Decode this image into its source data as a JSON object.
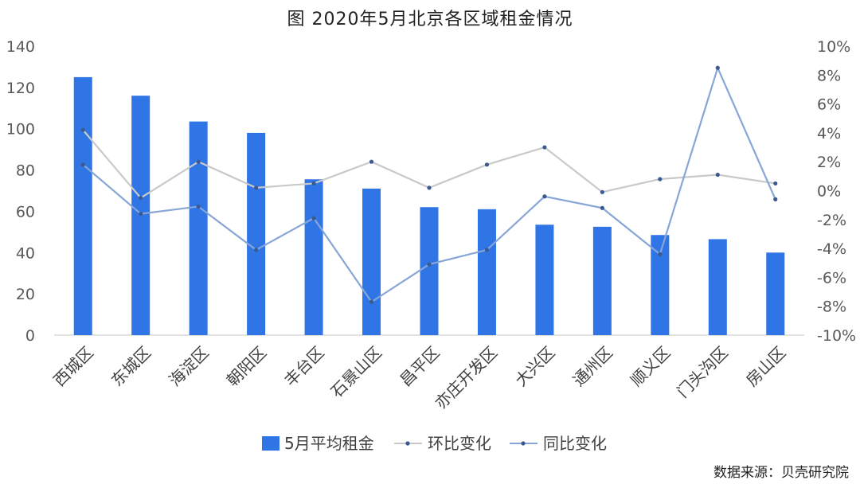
{
  "title": "图 2020年5月北京各区域租金情况",
  "source": "数据来源：贝壳研究院",
  "colors": {
    "bar": "#2F75E5",
    "mom": "#C9C9C9",
    "yoy": "#87A5D6",
    "axis": "#D9D9D9"
  },
  "chart_data": {
    "type": "bar",
    "categories": [
      "西城区",
      "东城区",
      "海淀区",
      "朝阳区",
      "丰台区",
      "石景山区",
      "昌平区",
      "亦庄开发区",
      "大兴区",
      "通州区",
      "顺义区",
      "门头沟区",
      "房山区"
    ],
    "series": [
      {
        "name": "5月平均租金",
        "type": "bar",
        "axis": "left",
        "values": [
          125,
          116,
          103.5,
          98,
          75.5,
          71,
          62,
          61,
          53.5,
          52.5,
          48.5,
          46.5,
          40
        ]
      },
      {
        "name": "环比变化",
        "type": "line",
        "axis": "right",
        "values": [
          4.2,
          -0.5,
          2.0,
          0.2,
          0.5,
          2.0,
          0.2,
          1.8,
          3.0,
          -0.1,
          0.8,
          1.1,
          0.5
        ]
      },
      {
        "name": "同比变化",
        "type": "line",
        "axis": "right",
        "values": [
          1.8,
          -1.6,
          -1.1,
          -4.1,
          -1.9,
          -7.7,
          -5.1,
          -4.1,
          -0.4,
          -1.2,
          -4.4,
          8.5,
          -0.6
        ]
      }
    ],
    "ylim": [
      0,
      140
    ],
    "yticks": [
      "0",
      "20",
      "40",
      "60",
      "80",
      "100",
      "120",
      "140"
    ],
    "y2lim": [
      -10,
      10
    ],
    "y2ticks": [
      "-10%",
      "-8%",
      "-6%",
      "-4%",
      "-2%",
      "0%",
      "2%",
      "4%",
      "6%",
      "8%",
      "10%"
    ],
    "grid": false,
    "legend_position": "bottom"
  }
}
